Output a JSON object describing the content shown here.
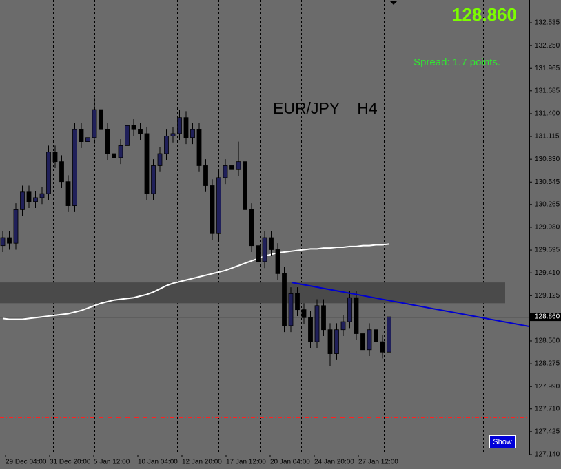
{
  "chart_data": {
    "type": "candlestick",
    "symbol_title": "EUR/JPY    H4",
    "spread_text": "Spread: 1.7 points.",
    "button": "Show",
    "bid": {
      "value": 128.86,
      "label": "128.860"
    },
    "ylim": [
      127.14,
      132.819
    ],
    "yticks": [
      132.535,
      {
        "value": 132.25,
        "label": "132.250"
      },
      131.965,
      131.685,
      {
        "value": 131.4,
        "label": "131.400"
      },
      131.115,
      {
        "value": 130.83,
        "label": "130.830"
      },
      130.545,
      130.265,
      {
        "value": 129.98,
        "label": "129.980"
      },
      129.695,
      {
        "value": 129.41,
        "label": "129.410"
      },
      129.125,
      {
        "value": 128.56,
        "label": "128.560"
      },
      128.275,
      {
        "value": 127.99,
        "label": "127.990"
      },
      {
        "value": 127.71,
        "label": "127.710"
      },
      127.425,
      {
        "value": 127.14,
        "label": "127.140"
      }
    ],
    "x_labels": [
      "29 Dec 04:00",
      "31 Dec 20:00",
      "5 Jan 12:00",
      "10 Jan 04:00",
      "12 Jan 20:00",
      "17 Jan 12:00",
      "20 Jan 04:00",
      "24 Jan 20:00",
      "27 Jan 12:00"
    ],
    "open": [
      129.75,
      129.85,
      129.78,
      130.2,
      130.42,
      130.3,
      130.35,
      130.4,
      130.92,
      130.8,
      130.55,
      130.25,
      131.2,
      131.05,
      131.1,
      131.45,
      131.2,
      130.9,
      130.85,
      131.0,
      131.25,
      131.2,
      131.15,
      130.4,
      130.75,
      130.9,
      131.12,
      131.15,
      131.35,
      131.1,
      131.2,
      130.75,
      130.5,
      129.9,
      130.6,
      130.75,
      130.7,
      130.8,
      130.2,
      129.75,
      129.55,
      129.85,
      129.7,
      129.4,
      128.75,
      129.15,
      128.95,
      128.85,
      128.55,
      129.0,
      128.7,
      128.4,
      128.7,
      128.8,
      129.1,
      128.65,
      128.45,
      128.7,
      128.55,
      128.42
    ],
    "high": [
      129.93,
      129.93,
      130.28,
      130.5,
      130.5,
      130.43,
      130.48,
      131.0,
      131.0,
      130.88,
      130.63,
      131.28,
      131.28,
      131.18,
      131.6,
      131.53,
      131.28,
      130.98,
      131.08,
      131.33,
      131.33,
      131.28,
      131.23,
      130.83,
      130.98,
      131.2,
      131.23,
      131.45,
      131.43,
      131.28,
      131.28,
      130.83,
      130.58,
      130.68,
      130.83,
      130.83,
      131.05,
      130.88,
      130.28,
      129.83,
      129.93,
      129.93,
      129.78,
      129.48,
      129.23,
      129.23,
      129.03,
      128.93,
      129.08,
      129.08,
      128.78,
      128.78,
      128.88,
      129.18,
      129.18,
      128.73,
      128.78,
      128.78,
      128.63,
      129.1
    ],
    "low": [
      129.67,
      129.7,
      129.7,
      130.12,
      130.22,
      130.22,
      130.27,
      130.32,
      130.72,
      130.47,
      130.17,
      130.17,
      130.97,
      130.97,
      131.02,
      131.12,
      130.82,
      130.77,
      130.77,
      130.92,
      131.12,
      131.07,
      130.32,
      130.32,
      130.67,
      130.82,
      131.04,
      131.07,
      131.02,
      131.02,
      130.67,
      130.42,
      129.82,
      129.82,
      130.52,
      130.62,
      130.62,
      130.12,
      129.67,
      129.47,
      129.47,
      129.62,
      129.32,
      128.67,
      128.67,
      128.87,
      128.77,
      128.47,
      128.47,
      128.62,
      128.25,
      128.32,
      128.62,
      128.72,
      128.57,
      128.37,
      128.37,
      128.47,
      128.34,
      128.34
    ],
    "close": [
      129.85,
      129.78,
      130.2,
      130.42,
      130.3,
      130.35,
      130.4,
      130.92,
      130.8,
      130.55,
      130.25,
      131.2,
      131.05,
      131.1,
      131.45,
      131.2,
      130.9,
      130.85,
      131.0,
      131.25,
      131.2,
      131.15,
      130.4,
      130.75,
      130.9,
      131.12,
      131.15,
      131.35,
      131.1,
      131.2,
      130.75,
      130.5,
      129.9,
      130.6,
      130.75,
      130.7,
      130.8,
      130.2,
      129.75,
      129.55,
      129.85,
      129.7,
      129.4,
      128.75,
      129.15,
      128.95,
      128.85,
      128.55,
      129.0,
      128.7,
      128.4,
      128.7,
      128.8,
      129.1,
      128.65,
      128.45,
      128.7,
      128.55,
      128.42,
      128.86
    ],
    "ma": [
      128.84,
      128.83,
      128.83,
      128.83,
      128.84,
      128.85,
      128.86,
      128.87,
      128.88,
      128.89,
      128.9,
      128.92,
      128.94,
      128.97,
      129.0,
      129.03,
      129.05,
      129.07,
      129.08,
      129.09,
      129.1,
      129.12,
      129.14,
      129.17,
      129.21,
      129.25,
      129.28,
      129.3,
      129.32,
      129.34,
      129.36,
      129.38,
      129.4,
      129.42,
      129.44,
      129.47,
      129.5,
      129.53,
      129.56,
      129.59,
      129.62,
      129.64,
      129.66,
      129.67,
      129.68,
      129.69,
      129.7,
      129.71,
      129.71,
      129.72,
      129.72,
      129.73,
      129.73,
      129.74,
      129.74,
      129.75,
      129.75,
      129.76,
      129.76,
      129.77
    ],
    "zone": [
      129.03,
      129.29
    ],
    "levels": [
      129.02,
      127.6
    ],
    "trendline": [
      129.29,
      128.74
    ]
  }
}
